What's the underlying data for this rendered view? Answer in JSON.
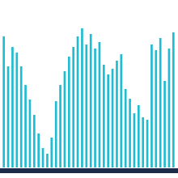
{
  "chart_data": {
    "type": "bar",
    "categories": [
      null,
      null,
      null,
      null,
      null,
      null,
      null,
      null,
      null,
      null,
      null,
      null,
      null,
      null,
      null,
      null,
      null,
      null,
      null,
      null,
      null,
      null,
      null,
      null,
      null,
      null,
      null,
      null,
      null,
      null,
      null,
      null,
      null,
      null,
      null,
      null,
      null,
      null,
      null,
      null
    ],
    "values": [
      162,
      125,
      149,
      142,
      125,
      102,
      84,
      65,
      42,
      24,
      17,
      37,
      82,
      102,
      119,
      137,
      149,
      162,
      172,
      152,
      165,
      147,
      155,
      127,
      115,
      122,
      132,
      140,
      97,
      85,
      67,
      77,
      62,
      59,
      152,
      145,
      160,
      107,
      147,
      167
    ],
    "color": "#1fbcd2",
    "ylim": [
      0,
      180
    ],
    "grid": false,
    "tick_labels": false
  }
}
